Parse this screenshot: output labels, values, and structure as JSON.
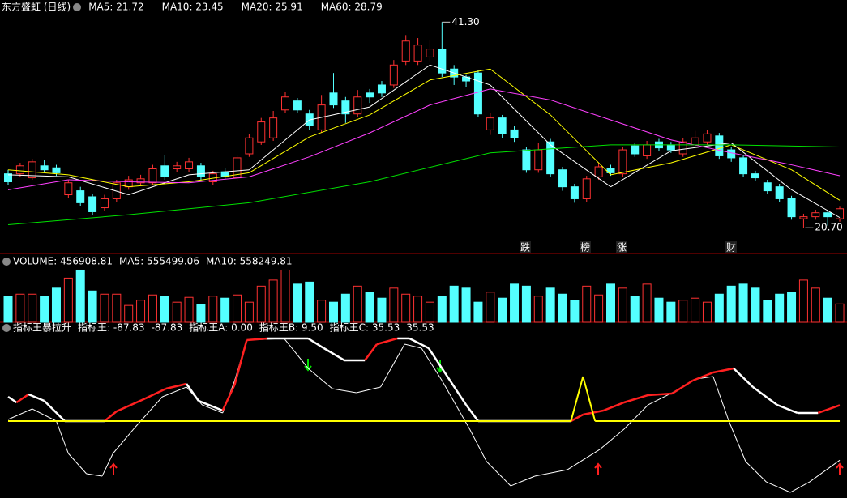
{
  "chart_data": {
    "type": "candlestick",
    "title": "东方盛虹 (日线)",
    "legend": [
      {
        "label": "MA5: 21.72",
        "color": "#ffffff"
      },
      {
        "label": "MA10: 23.45",
        "color": "#ffff00"
      },
      {
        "label": "MA20: 25.91",
        "color": "#ff40ff"
      },
      {
        "label": "MA60: 28.79",
        "color": "#00e000"
      }
    ],
    "ylim": [
      18.2,
      42.3
    ],
    "up_color": "#ff3232",
    "down_color": "#54ffff",
    "candles": [
      [
        26.1,
        25.3,
        26.5,
        25.0
      ],
      [
        26.1,
        26.9,
        27.2,
        25.8
      ],
      [
        25.7,
        27.3,
        27.6,
        25.5
      ],
      [
        26.9,
        26.5,
        27.5,
        26.2
      ],
      [
        26.7,
        26.2,
        27.0,
        25.9
      ],
      [
        24.0,
        25.2,
        25.5,
        23.7
      ],
      [
        24.4,
        23.2,
        24.8,
        22.9
      ],
      [
        23.8,
        22.3,
        24.1,
        22.0
      ],
      [
        22.7,
        23.6,
        24.0,
        22.4
      ],
      [
        23.6,
        25.2,
        25.5,
        23.3
      ],
      [
        24.8,
        25.5,
        25.9,
        24.5
      ],
      [
        25.2,
        25.6,
        26.0,
        24.9
      ],
      [
        25.2,
        26.6,
        27.0,
        25.0
      ],
      [
        26.9,
        25.8,
        28.0,
        25.5
      ],
      [
        26.6,
        26.9,
        27.3,
        26.3
      ],
      [
        26.6,
        27.3,
        27.7,
        26.3
      ],
      [
        26.9,
        25.8,
        27.2,
        25.4
      ],
      [
        25.3,
        26.1,
        26.4,
        25.0
      ],
      [
        26.3,
        25.8,
        26.7,
        25.5
      ],
      [
        25.7,
        27.7,
        28.0,
        25.4
      ],
      [
        28.1,
        29.7,
        30.1,
        27.8
      ],
      [
        29.3,
        31.3,
        31.7,
        29.0
      ],
      [
        29.7,
        31.7,
        32.4,
        29.4
      ],
      [
        32.5,
        33.8,
        34.3,
        32.2
      ],
      [
        33.4,
        32.5,
        33.7,
        32.2
      ],
      [
        32.1,
        30.9,
        32.5,
        30.5
      ],
      [
        30.5,
        33.0,
        34.0,
        30.2
      ],
      [
        34.2,
        33.0,
        36.2,
        32.7
      ],
      [
        33.4,
        32.1,
        33.8,
        31.2
      ],
      [
        32.1,
        33.8,
        34.5,
        31.8
      ],
      [
        34.2,
        33.8,
        34.6,
        33.2
      ],
      [
        35.0,
        34.2,
        35.4,
        33.8
      ],
      [
        35.0,
        37.0,
        37.5,
        34.7
      ],
      [
        37.4,
        39.4,
        40.0,
        37.0
      ],
      [
        37.4,
        39.0,
        39.7,
        37.0
      ],
      [
        37.8,
        38.6,
        39.5,
        37.4
      ],
      [
        38.6,
        36.2,
        41.3,
        35.8
      ],
      [
        36.6,
        35.8,
        37.0,
        35.0
      ],
      [
        35.8,
        35.4,
        36.0,
        34.8
      ],
      [
        36.2,
        32.1,
        36.5,
        31.8
      ],
      [
        30.5,
        31.7,
        32.2,
        30.0
      ],
      [
        31.7,
        30.1,
        32.0,
        29.7
      ],
      [
        30.5,
        29.7,
        30.9,
        29.3
      ],
      [
        28.5,
        26.5,
        28.8,
        26.2
      ],
      [
        26.5,
        28.5,
        29.2,
        26.2
      ],
      [
        29.3,
        26.1,
        29.6,
        25.8
      ],
      [
        26.5,
        24.8,
        26.8,
        24.4
      ],
      [
        24.8,
        23.6,
        25.1,
        23.2
      ],
      [
        23.6,
        25.6,
        25.9,
        23.3
      ],
      [
        25.8,
        26.8,
        27.2,
        25.5
      ],
      [
        26.6,
        26.2,
        27.0,
        25.9
      ],
      [
        26.1,
        28.5,
        28.8,
        25.8
      ],
      [
        28.9,
        28.1,
        29.2,
        27.8
      ],
      [
        27.9,
        29.0,
        29.4,
        27.6
      ],
      [
        29.3,
        28.7,
        29.6,
        28.4
      ],
      [
        29.0,
        28.5,
        29.3,
        28.2
      ],
      [
        28.1,
        29.3,
        29.7,
        27.8
      ],
      [
        29.0,
        29.7,
        30.4,
        28.7
      ],
      [
        29.3,
        30.1,
        30.5,
        29.0
      ],
      [
        29.9,
        27.9,
        30.2,
        27.6
      ],
      [
        28.5,
        27.7,
        28.8,
        27.3
      ],
      [
        27.7,
        26.1,
        28.0,
        25.8
      ],
      [
        26.1,
        25.7,
        26.4,
        25.4
      ],
      [
        25.2,
        24.4,
        25.5,
        24.1
      ],
      [
        24.8,
        23.6,
        25.1,
        23.3
      ],
      [
        23.6,
        21.8,
        23.9,
        21.5
      ],
      [
        21.6,
        21.8,
        22.1,
        20.7
      ],
      [
        21.8,
        22.2,
        22.5,
        21.5
      ],
      [
        22.2,
        21.8,
        22.5,
        20.9
      ],
      [
        21.6,
        22.6,
        22.8,
        21.3
      ]
    ],
    "series": [
      {
        "color": "#ffffff",
        "x": [
          0,
          5,
          10,
          15,
          20,
          25,
          30,
          35,
          40,
          45,
          50,
          55,
          60,
          65,
          69
        ],
        "values": [
          26.0,
          25.8,
          24.0,
          26.0,
          26.5,
          31.5,
          32.8,
          37.0,
          35.0,
          29.0,
          24.8,
          28.4,
          29.2,
          24.5,
          21.72
        ]
      },
      {
        "color": "#ffff00",
        "x": [
          0,
          5,
          10,
          15,
          20,
          25,
          30,
          35,
          40,
          45,
          50,
          55,
          60,
          65,
          69
        ],
        "values": [
          26.5,
          26.0,
          24.8,
          25.3,
          26.2,
          29.8,
          32.0,
          35.5,
          36.6,
          32.0,
          26.0,
          27.2,
          29.0,
          26.5,
          23.45
        ]
      },
      {
        "color": "#ff40ff",
        "x": [
          0,
          5,
          10,
          15,
          20,
          25,
          30,
          35,
          40,
          45,
          50,
          55,
          60,
          65,
          69
        ],
        "values": [
          24.5,
          25.5,
          25.3,
          25.2,
          25.8,
          27.8,
          30.2,
          33.0,
          34.6,
          33.5,
          31.5,
          29.5,
          28.2,
          27.0,
          25.91
        ]
      },
      {
        "color": "#00e000",
        "x": [
          0,
          10,
          20,
          30,
          40,
          50,
          60,
          69
        ],
        "values": [
          21.0,
          22.0,
          23.2,
          25.3,
          28.2,
          29.0,
          29.0,
          28.79
        ]
      }
    ],
    "annotations": [
      {
        "value": 41.3,
        "label": "41.30"
      },
      {
        "value": 20.7,
        "label": "20.70"
      }
    ],
    "markers": [
      {
        "label": "跌",
        "color": "#00ff00"
      },
      {
        "label": "榜",
        "color": "#ffa040"
      },
      {
        "label": "涨",
        "color": "#ff4040"
      },
      {
        "label": "财",
        "color": "#80c0ff"
      }
    ],
    "volume": {
      "title": "VOLUME: 456908.81",
      "legend": [
        {
          "label": "MA5: 555499.06",
          "color": "#ffffff"
        },
        {
          "label": "MA10: 558249.81",
          "color": "#ffff00"
        }
      ],
      "ylim": [
        0,
        1350000
      ],
      "values": [
        650000,
        700000,
        700000,
        650000,
        850000,
        1100000,
        1300000,
        780000,
        700000,
        700000,
        420000,
        550000,
        680000,
        650000,
        500000,
        620000,
        440000,
        650000,
        600000,
        680000,
        500000,
        900000,
        1050000,
        1300000,
        950000,
        1000000,
        550000,
        500000,
        700000,
        900000,
        750000,
        600000,
        850000,
        700000,
        650000,
        500000,
        650000,
        900000,
        850000,
        500000,
        750000,
        600000,
        950000,
        900000,
        650000,
        850000,
        700000,
        550000,
        900000,
        680000,
        950000,
        850000,
        650000,
        950000,
        600000,
        500000,
        550000,
        600000,
        500000,
        700000,
        900000,
        950000,
        850000,
        550000,
        700000,
        750000,
        1050000,
        850000,
        600000,
        456908.81
      ]
    },
    "indicator": {
      "title": "指标王暴拉升",
      "legend": [
        {
          "label": "指标王: -87.83",
          "color": "#ffffff"
        },
        {
          "label": "-87.83",
          "color": "#ff3030"
        },
        {
          "label": "指标王A: 0.00",
          "color": "#ffff00"
        },
        {
          "label": "指标王B: 9.50",
          "color": "#ffff00"
        },
        {
          "label": "指标王C: 35.53",
          "color": "#ffffff"
        },
        {
          "label": "35.53",
          "color": "#ff3030"
        }
      ],
      "ylim": [
        -172.7,
        203.6
      ],
      "series": [
        {
          "color": "#ffffff",
          "width": 1,
          "x": [
            0,
            2,
            4,
            5,
            6.5,
            7.8,
            8.7,
            10.4,
            12.8,
            14.8,
            16.1,
            17.8,
            18.8,
            19.8,
            22.9,
            24.9,
            26.9,
            28.9,
            30.9,
            32.9,
            34.3,
            36,
            38.3,
            39.7,
            41.7,
            43.7,
            46.4,
            49.1,
            51.1,
            53.1,
            55.1,
            57.1,
            58.5,
            59.8,
            61.2,
            62.9,
            64.9,
            66.5,
            69
          ],
          "values": [
            3.6,
            27.3,
            0,
            -72.7,
            -118.2,
            -123.6,
            -72.7,
            -18.2,
            54.5,
            76.4,
            36.4,
            18.2,
            90.9,
            181.8,
            185.5,
            118.2,
            72.7,
            63.6,
            76.4,
            172.7,
            163.6,
            90.9,
            -18.2,
            -90.9,
            -145.5,
            -123.6,
            -109.1,
            -63.6,
            -18.2,
            36.4,
            63.6,
            94.5,
            100,
            0,
            -90.9,
            -136.4,
            -160,
            -136.4,
            -87.83
          ]
        },
        {
          "color": "#ffffff",
          "rise_color": "#ff2020",
          "width": 2.5,
          "x": [
            0,
            0.7,
            1.7,
            3,
            4.7,
            8,
            9,
            11.4,
            13.1,
            14.8,
            15.8,
            17.8,
            18.8,
            19.8,
            21.5,
            23.2,
            24.9,
            26.2,
            27.9,
            29.6,
            30.6,
            32.3,
            33.3,
            34.9,
            36,
            38,
            39,
            46.7,
            47.7,
            49.4,
            51.1,
            53.1,
            55.1,
            56.8,
            58.5,
            60.2,
            61.8,
            63.8,
            65.5,
            67.2,
            69
          ],
          "values": [
            54.5,
            41.8,
            60.0,
            45.5,
            0,
            0,
            21.8,
            50.9,
            72.7,
            83.6,
            45.5,
            23.6,
            81.8,
            181.8,
            185.5,
            185.5,
            185.5,
            163.6,
            136.4,
            136.4,
            172.7,
            185.5,
            185.5,
            163.6,
            118.2,
            36.4,
            0,
            0,
            14.5,
            23.6,
            41.8,
            58.2,
            61.8,
            90.9,
            109.1,
            118.2,
            76.4,
            36.4,
            18.2,
            18.2,
            35.53
          ]
        },
        {
          "color": "#ffff00",
          "width": 2,
          "x": [
            0,
            46.7,
            47.7,
            48.7,
            69
          ],
          "values": [
            0,
            0,
            100,
            0,
            0
          ]
        }
      ]
    }
  }
}
